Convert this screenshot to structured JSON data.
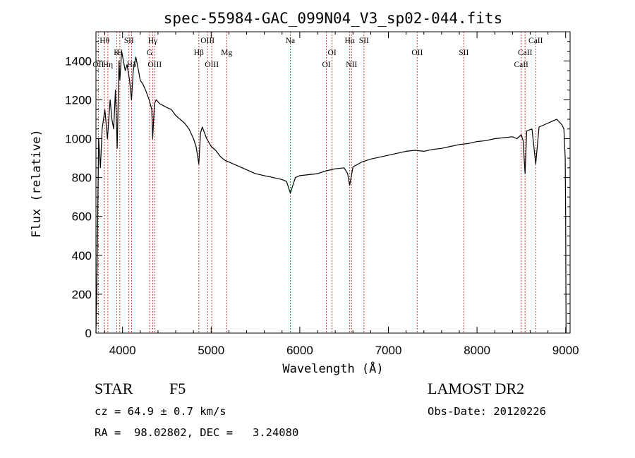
{
  "chart_data": {
    "type": "line",
    "title": "spec-55984-GAC_099N04_V3_sp02-044.fits",
    "xlabel": "Wavelength (Å)",
    "ylabel": "Flux (relative)",
    "xlim": [
      3700,
      9050
    ],
    "ylim": [
      0,
      1550
    ],
    "x_ticks": [
      4000,
      5000,
      6000,
      7000,
      8000,
      9000
    ],
    "x_tick_labels": [
      "4000",
      "5000",
      "6000",
      "7000",
      "8000",
      "9000"
    ],
    "y_ticks": [
      0,
      200,
      400,
      600,
      800,
      1000,
      1200,
      1400
    ],
    "y_tick_labels": [
      "0",
      "200",
      "400",
      "600",
      "800",
      "1000",
      "1200",
      "1400"
    ],
    "grid": false,
    "spectrum": {
      "x": [
        3700,
        3710,
        3730,
        3750,
        3770,
        3800,
        3830,
        3860,
        3880,
        3900,
        3920,
        3940,
        3960,
        3970,
        3990,
        4010,
        4030,
        4050,
        4080,
        4101,
        4120,
        4150,
        4180,
        4200,
        4230,
        4260,
        4300,
        4330,
        4340,
        4360,
        4380,
        4420,
        4460,
        4500,
        4550,
        4600,
        4650,
        4700,
        4750,
        4800,
        4830,
        4861,
        4880,
        4900,
        4950,
        5000,
        5050,
        5100,
        5150,
        5200,
        5300,
        5400,
        5500,
        5600,
        5700,
        5800,
        5850,
        5893,
        5950,
        6000,
        6100,
        6200,
        6300,
        6400,
        6500,
        6540,
        6563,
        6600,
        6700,
        6800,
        6900,
        7000,
        7100,
        7200,
        7300,
        7400,
        7500,
        7600,
        7700,
        7800,
        7900,
        8000,
        8100,
        8200,
        8300,
        8400,
        8450,
        8500,
        8520,
        8542,
        8560,
        8620,
        8662,
        8700,
        8800,
        8850,
        8900,
        8940,
        8960,
        8980,
        8995,
        9000,
        9005
      ],
      "y": [
        0,
        250,
        1000,
        850,
        1050,
        1150,
        1000,
        1200,
        1100,
        1050,
        1250,
        950,
        1400,
        1300,
        1450,
        1400,
        1350,
        1380,
        1300,
        1200,
        1350,
        1420,
        1350,
        1300,
        1280,
        1250,
        1200,
        1150,
        1000,
        1180,
        1200,
        1180,
        1170,
        1160,
        1150,
        1120,
        1100,
        1080,
        1050,
        1000,
        960,
        870,
        1030,
        1060,
        1000,
        960,
        940,
        910,
        890,
        880,
        860,
        840,
        820,
        810,
        800,
        790,
        780,
        720,
        800,
        810,
        815,
        820,
        835,
        845,
        850,
        820,
        760,
        855,
        880,
        895,
        905,
        915,
        925,
        935,
        940,
        935,
        945,
        950,
        960,
        970,
        975,
        985,
        990,
        1000,
        1005,
        1010,
        1000,
        1020,
        990,
        820,
        1040,
        1050,
        870,
        1060,
        1080,
        1090,
        1100,
        1080,
        1070,
        1050,
        900,
        600,
        0
      ]
    },
    "lines": [
      {
        "label": "Hθ",
        "wave": 3797,
        "row": 0
      },
      {
        "label": "OII",
        "wave": 3727,
        "row": 1
      },
      {
        "label": "Hη",
        "wave": 3835,
        "row": 1
      },
      {
        "label": "H",
        "wave": 3969,
        "row": 0.5
      },
      {
        "label": "K",
        "wave": 3934,
        "row": 0.5
      },
      {
        "label": "SII",
        "wave": 4072,
        "row": 0
      },
      {
        "label": "Hδ",
        "wave": 4102,
        "row": 1
      },
      {
        "label": "Hγ",
        "wave": 4340,
        "row": 0
      },
      {
        "label": "G",
        "wave": 4305,
        "row": 0.5
      },
      {
        "label": "OIII",
        "wave": 4363,
        "row": 1
      },
      {
        "label": "OIII",
        "wave": 4959,
        "row": 0
      },
      {
        "label": "Hβ",
        "wave": 4861,
        "row": 0.5
      },
      {
        "label": "OIII",
        "wave": 5007,
        "row": 1
      },
      {
        "label": "Mg",
        "wave": 5175,
        "row": 0.5
      },
      {
        "label": "Na",
        "wave": 5893,
        "row": 0
      },
      {
        "label": "OI",
        "wave": 6364,
        "row": 0.5
      },
      {
        "label": "OI",
        "wave": 6300,
        "row": 1
      },
      {
        "label": "Hα",
        "wave": 6563,
        "row": 0
      },
      {
        "label": "SII",
        "wave": 6724,
        "row": 0
      },
      {
        "label": "NII",
        "wave": 6584,
        "row": 1
      },
      {
        "label": "OII",
        "wave": 7325,
        "row": 0.5
      },
      {
        "label": "SII",
        "wave": 7850,
        "row": 0.5
      },
      {
        "label": "CaII",
        "wave": 8662,
        "row": 0
      },
      {
        "label": "CaII",
        "wave": 8542,
        "row": 0.5
      },
      {
        "label": "CaII",
        "wave": 8498,
        "row": 1
      }
    ],
    "line_color": "#cc0000"
  },
  "info": {
    "object_class": "STAR",
    "subclass": "F5",
    "survey": "LAMOST DR2",
    "cz": "cz = 64.9 ± 0.7 km/s",
    "obs_date": "Obs-Date: 20120226",
    "coords": "RA =  98.02802, DEC =   3.24080"
  }
}
